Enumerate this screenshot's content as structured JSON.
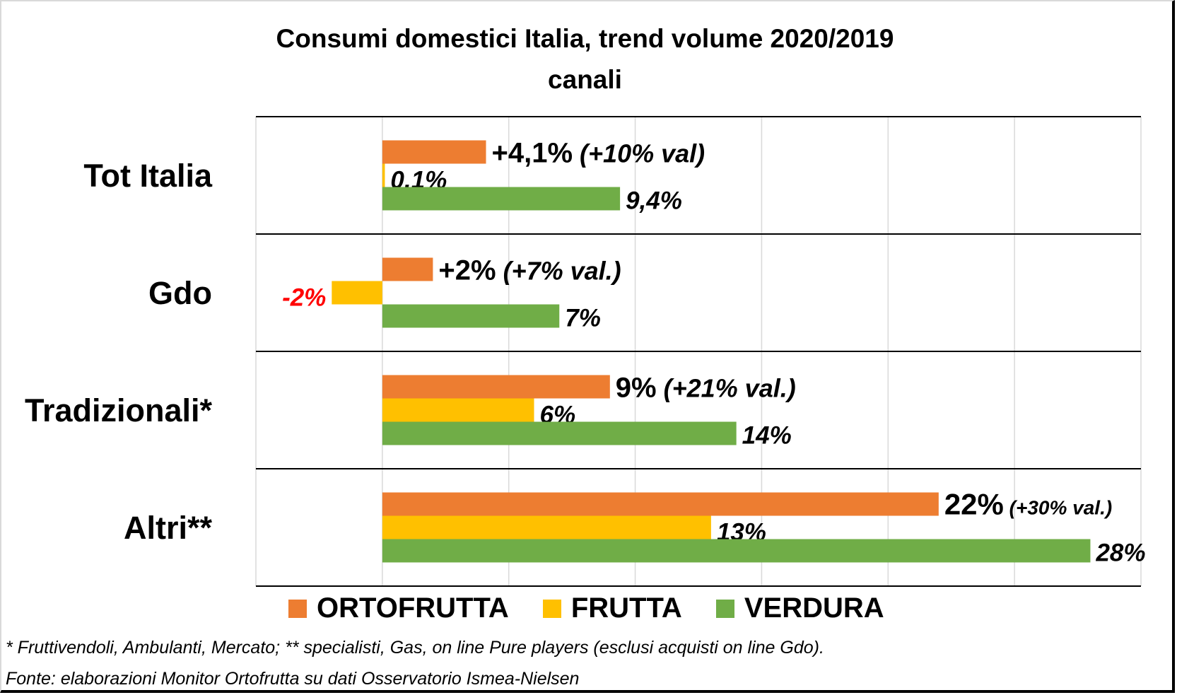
{
  "chart_data": {
    "type": "bar",
    "orientation": "horizontal",
    "title": "Consumi domestici Italia, trend volume 2020/2019",
    "subtitle": "canali",
    "categories": [
      "Tot Italia",
      "Gdo",
      "Tradizionali*",
      "Altri**"
    ],
    "series": [
      {
        "name": "ORTOFRUTTA",
        "color": "#ED7D31",
        "values": [
          4.1,
          2,
          9,
          22
        ],
        "labels": [
          "+4,1% (+10% val)",
          "+2% (+7% val.)",
          "9% (+21% val.)",
          "22% (+30% val.)"
        ]
      },
      {
        "name": "FRUTTA",
        "color": "#FFC000",
        "values": [
          0.1,
          -2,
          6,
          13
        ],
        "labels": [
          "0,1%",
          "-2%",
          "6%",
          "13%"
        ]
      },
      {
        "name": "VERDURA",
        "color": "#70AD47",
        "values": [
          9.4,
          7,
          14,
          28
        ],
        "labels": [
          "9,4%",
          "7%",
          "14%",
          "28%"
        ]
      }
    ],
    "xlim": [
      -5,
      30
    ],
    "xticks": [
      -5,
      0,
      5,
      10,
      15,
      20,
      25,
      30
    ],
    "xlabel": "",
    "ylabel": "",
    "grid": true,
    "legend_position": "bottom",
    "negative_label_color": "#FF0000"
  },
  "legend": [
    {
      "label": "ORTOFRUTTA",
      "color": "#ED7D31"
    },
    {
      "label": "FRUTTA",
      "color": "#FFC000"
    },
    {
      "label": "VERDURA",
      "color": "#70AD47"
    }
  ],
  "footnotes": {
    "note": "* Fruttivendoli, Ambulanti, Mercato; ** specialisti, Gas, on line Pure players (esclusi acquisti on line Gdo).",
    "source": "Fonte: elaborazioni Monitor Ortofrutta su dati Osservatorio Ismea-Nielsen"
  }
}
